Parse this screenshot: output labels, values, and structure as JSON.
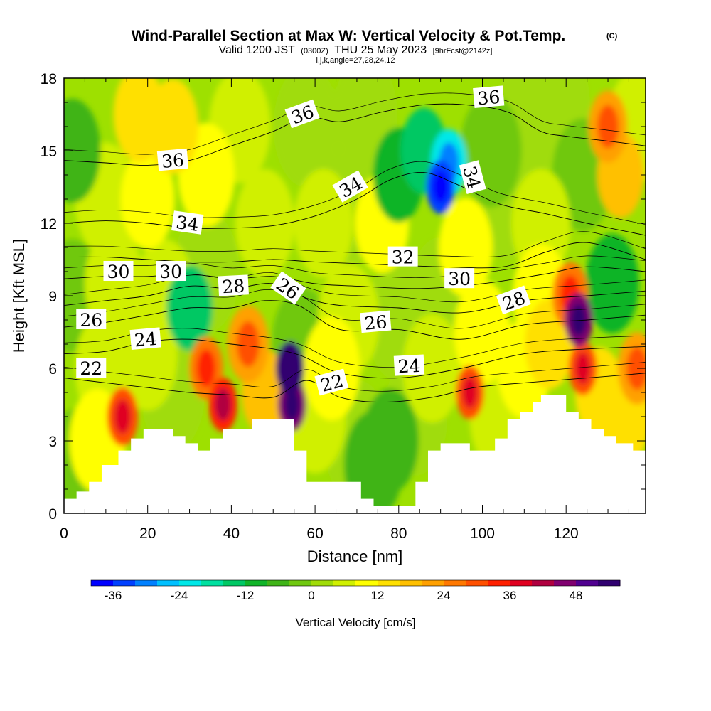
{
  "header": {
    "title": "Wind-Parallel Section at Max W: Vertical Velocity & Pot.Temp.",
    "title_mark": "(C)",
    "subtitle_valid": "Valid 1200 JST",
    "subtitle_utc": "(0300Z)",
    "subtitle_date": "THU 25 May 2023",
    "subtitle_fcst": "[9hrFcst@2142z]",
    "params": "i,j,k,angle=27,28,24,12"
  },
  "chart_data": {
    "type": "heatmap",
    "title": "Wind-Parallel Section at Max W: Vertical Velocity & Pot.Temp.",
    "xlabel": "Distance [nm]",
    "ylabel": "Height [Kft MSL]",
    "xlim": [
      0,
      139
    ],
    "ylim": [
      0,
      18
    ],
    "x_ticks": [
      "0",
      "20",
      "40",
      "60",
      "80",
      "100",
      "120"
    ],
    "y_ticks": [
      "0",
      "3",
      "6",
      "9",
      "12",
      "15",
      "18"
    ],
    "colorbar": {
      "title": "Vertical Velocity [cm/s]",
      "ticks": [
        "-36",
        "-24",
        "-12",
        "0",
        "12",
        "24",
        "36",
        "48"
      ],
      "min": -40,
      "max": 56,
      "step": 4,
      "colors": [
        "#0000ff",
        "#0040ff",
        "#0080ff",
        "#00c0ff",
        "#00e8e8",
        "#00e0a0",
        "#00c864",
        "#10b428",
        "#40b418",
        "#70c810",
        "#a0dc08",
        "#d0f000",
        "#ffff00",
        "#ffe000",
        "#ffc000",
        "#ffa000",
        "#ff7800",
        "#ff5000",
        "#ff2000",
        "#e00020",
        "#b00040",
        "#800070",
        "#500090",
        "#300070"
      ]
    },
    "velocity_cells": [
      {
        "x": 2,
        "y": 15,
        "w": -8
      },
      {
        "x": 2,
        "y": 9,
        "w": -4
      },
      {
        "x": 10,
        "y": 13,
        "w": 4
      },
      {
        "x": 18,
        "y": 16.5,
        "w": 12
      },
      {
        "x": 26,
        "y": 16,
        "w": 12
      },
      {
        "x": 20,
        "y": 13,
        "w": 10
      },
      {
        "x": 34,
        "y": 14,
        "w": 8
      },
      {
        "x": 42,
        "y": 16,
        "w": 4
      },
      {
        "x": 58,
        "y": 16,
        "w": 0
      },
      {
        "x": 62,
        "y": 12,
        "w": 6
      },
      {
        "x": 72,
        "y": 16.5,
        "w": 2
      },
      {
        "x": 80,
        "y": 14,
        "w": -12
      },
      {
        "x": 86,
        "y": 15,
        "w": -16
      },
      {
        "x": 90,
        "y": 13.5,
        "w": -36
      },
      {
        "x": 92,
        "y": 14.5,
        "w": -24
      },
      {
        "x": 102,
        "y": 15,
        "w": -4
      },
      {
        "x": 106,
        "y": 13,
        "w": 0
      },
      {
        "x": 110,
        "y": 16,
        "w": 0
      },
      {
        "x": 114,
        "y": 12,
        "w": 6
      },
      {
        "x": 118,
        "y": 17,
        "w": 2
      },
      {
        "x": 124,
        "y": 14,
        "w": -4
      },
      {
        "x": 130,
        "y": 16,
        "w": 22
      },
      {
        "x": 133,
        "y": 14,
        "w": 16
      },
      {
        "x": 137,
        "y": 16,
        "w": 4
      },
      {
        "x": 76,
        "y": 12,
        "w": 10
      },
      {
        "x": 96,
        "y": 11,
        "w": 10
      },
      {
        "x": 12,
        "y": 9.5,
        "w": 6
      },
      {
        "x": 24,
        "y": 9,
        "w": 4
      },
      {
        "x": 30,
        "y": 8.5,
        "w": -16
      },
      {
        "x": 34,
        "y": 10,
        "w": 0
      },
      {
        "x": 34,
        "y": 6,
        "w": 26
      },
      {
        "x": 38,
        "y": 4.5,
        "w": 32
      },
      {
        "x": 44,
        "y": 7,
        "w": 20
      },
      {
        "x": 48,
        "y": 5,
        "w": 16
      },
      {
        "x": 54,
        "y": 6,
        "w": 52
      },
      {
        "x": 54.5,
        "y": 4.5,
        "w": 44
      },
      {
        "x": 57,
        "y": 7,
        "w": -4
      },
      {
        "x": 60,
        "y": 4,
        "w": 4
      },
      {
        "x": 64,
        "y": 6,
        "w": 8
      },
      {
        "x": 68,
        "y": 8,
        "w": 4
      },
      {
        "x": 70,
        "y": 3,
        "w": 0
      },
      {
        "x": 74,
        "y": 2,
        "w": -6
      },
      {
        "x": 78,
        "y": 3,
        "w": -8
      },
      {
        "x": 84,
        "y": 4,
        "w": 2
      },
      {
        "x": 88,
        "y": 6,
        "w": 6
      },
      {
        "x": 97,
        "y": 5,
        "w": 30
      },
      {
        "x": 100,
        "y": 7.5,
        "w": 8
      },
      {
        "x": 104,
        "y": 4,
        "w": 6
      },
      {
        "x": 110,
        "y": 6,
        "w": 10
      },
      {
        "x": 114,
        "y": 9,
        "w": 8
      },
      {
        "x": 116,
        "y": 7,
        "w": 14
      },
      {
        "x": 121,
        "y": 9,
        "w": 24
      },
      {
        "x": 123,
        "y": 8,
        "w": 44
      },
      {
        "x": 124,
        "y": 6,
        "w": 30
      },
      {
        "x": 128,
        "y": 5,
        "w": 14
      },
      {
        "x": 131,
        "y": 9.5,
        "w": -10
      },
      {
        "x": 134,
        "y": 4,
        "w": 12
      },
      {
        "x": 137,
        "y": 6,
        "w": 22
      },
      {
        "x": 14,
        "y": 4,
        "w": 28
      },
      {
        "x": 8,
        "y": 3,
        "w": 8
      },
      {
        "x": 3,
        "y": 2,
        "w": -4
      },
      {
        "x": 26,
        "y": 5,
        "w": 2
      },
      {
        "x": 90,
        "y": 9,
        "w": 2
      },
      {
        "x": 80,
        "y": 8,
        "w": 0
      },
      {
        "x": 66,
        "y": 12.5,
        "w": 0
      },
      {
        "x": 48,
        "y": 12,
        "w": 6
      },
      {
        "x": 10,
        "y": 6,
        "w": 4
      },
      {
        "x": 20,
        "y": 6.5,
        "w": 6
      }
    ],
    "terrain": [
      [
        0,
        0.6
      ],
      [
        3,
        0.6
      ],
      [
        3,
        0.9
      ],
      [
        6,
        0.9
      ],
      [
        6,
        1.3
      ],
      [
        9,
        1.3
      ],
      [
        9,
        2.0
      ],
      [
        13,
        2.0
      ],
      [
        13,
        2.6
      ],
      [
        16,
        2.6
      ],
      [
        16,
        3.1
      ],
      [
        19,
        3.1
      ],
      [
        19,
        3.5
      ],
      [
        26,
        3.5
      ],
      [
        26,
        3.2
      ],
      [
        29,
        3.2
      ],
      [
        29,
        2.9
      ],
      [
        32,
        2.9
      ],
      [
        32,
        2.6
      ],
      [
        35,
        2.6
      ],
      [
        35,
        3.1
      ],
      [
        38,
        3.1
      ],
      [
        38,
        3.5
      ],
      [
        45,
        3.5
      ],
      [
        45,
        3.9
      ],
      [
        55,
        3.9
      ],
      [
        55,
        2.6
      ],
      [
        58,
        2.6
      ],
      [
        58,
        1.3
      ],
      [
        71,
        1.3
      ],
      [
        71,
        0.6
      ],
      [
        74,
        0.6
      ],
      [
        74,
        0.3
      ],
      [
        84,
        0.3
      ],
      [
        84,
        1.3
      ],
      [
        87,
        1.3
      ],
      [
        87,
        2.6
      ],
      [
        90,
        2.6
      ],
      [
        90,
        2.9
      ],
      [
        97,
        2.9
      ],
      [
        97,
        2.6
      ],
      [
        103,
        2.6
      ],
      [
        103,
        3.1
      ],
      [
        106,
        3.1
      ],
      [
        106,
        3.9
      ],
      [
        109,
        3.9
      ],
      [
        109,
        4.2
      ],
      [
        112,
        4.2
      ],
      [
        112,
        4.6
      ],
      [
        114,
        4.6
      ],
      [
        114,
        4.9
      ],
      [
        120,
        4.9
      ],
      [
        120,
        4.2
      ],
      [
        123,
        4.2
      ],
      [
        123,
        3.9
      ],
      [
        126,
        3.9
      ],
      [
        126,
        3.5
      ],
      [
        129,
        3.5
      ],
      [
        129,
        3.2
      ],
      [
        132,
        3.2
      ],
      [
        132,
        2.9
      ],
      [
        136,
        2.9
      ],
      [
        136,
        2.6
      ],
      [
        139,
        2.6
      ]
    ],
    "theta_contours": [
      {
        "level": 22,
        "points": [
          [
            0,
            5.6
          ],
          [
            10,
            5.4
          ],
          [
            20,
            5.2
          ],
          [
            30,
            5.0
          ],
          [
            40,
            4.9
          ],
          [
            50,
            4.8
          ],
          [
            58,
            5.5
          ],
          [
            66,
            4.8
          ],
          [
            76,
            4.6
          ],
          [
            88,
            4.8
          ],
          [
            98,
            5.2
          ],
          [
            110,
            5.4
          ],
          [
            125,
            5.6
          ],
          [
            139,
            5.8
          ]
        ]
      },
      {
        "level": 24,
        "points": [
          [
            0,
            6.6
          ],
          [
            10,
            6.7
          ],
          [
            20,
            7.1
          ],
          [
            30,
            7.2
          ],
          [
            40,
            7.0
          ],
          [
            50,
            6.8
          ],
          [
            57,
            6.5
          ],
          [
            66,
            5.8
          ],
          [
            80,
            5.6
          ],
          [
            95,
            6.0
          ],
          [
            110,
            6.6
          ],
          [
            125,
            6.8
          ],
          [
            139,
            6.9
          ]
        ]
      },
      {
        "level": 26,
        "points": [
          [
            0,
            7.7
          ],
          [
            10,
            7.9
          ],
          [
            20,
            8.2
          ],
          [
            30,
            8.5
          ],
          [
            40,
            8.5
          ],
          [
            48,
            8.8
          ],
          [
            56,
            8.6
          ],
          [
            66,
            7.6
          ],
          [
            80,
            7.6
          ],
          [
            95,
            7.2
          ],
          [
            110,
            7.8
          ],
          [
            125,
            8.0
          ],
          [
            139,
            8.2
          ]
        ]
      },
      {
        "level": 28,
        "points": [
          [
            0,
            8.6
          ],
          [
            10,
            8.8
          ],
          [
            20,
            9.0
          ],
          [
            30,
            9.4
          ],
          [
            40,
            9.3
          ],
          [
            50,
            9.5
          ],
          [
            58,
            8.9
          ],
          [
            66,
            8.6
          ],
          [
            80,
            8.5
          ],
          [
            95,
            8.3
          ],
          [
            110,
            8.8
          ],
          [
            125,
            9.0
          ],
          [
            139,
            9.2
          ]
        ]
      },
      {
        "level": 30,
        "points": [
          [
            0,
            9.7
          ],
          [
            10,
            9.8
          ],
          [
            20,
            9.8
          ],
          [
            30,
            9.9
          ],
          [
            40,
            9.7
          ],
          [
            50,
            9.8
          ],
          [
            60,
            9.5
          ],
          [
            70,
            9.4
          ],
          [
            85,
            9.3
          ],
          [
            100,
            9.5
          ],
          [
            115,
            9.9
          ],
          [
            125,
            10.2
          ],
          [
            139,
            10.0
          ]
        ]
      },
      {
        "level": 32,
        "points": [
          [
            0,
            10.6
          ],
          [
            10,
            10.6
          ],
          [
            20,
            10.5
          ],
          [
            30,
            10.4
          ],
          [
            40,
            10.4
          ],
          [
            50,
            10.5
          ],
          [
            60,
            10.4
          ],
          [
            75,
            10.3
          ],
          [
            90,
            10.2
          ],
          [
            105,
            10.2
          ],
          [
            115,
            10.8
          ],
          [
            125,
            11.2
          ],
          [
            139,
            10.5
          ]
        ]
      },
      {
        "level": 34,
        "points": [
          [
            0,
            12.0
          ],
          [
            10,
            12.1
          ],
          [
            20,
            12.0
          ],
          [
            30,
            11.8
          ],
          [
            40,
            11.8
          ],
          [
            50,
            11.9
          ],
          [
            60,
            12.3
          ],
          [
            70,
            13.0
          ],
          [
            78,
            13.8
          ],
          [
            86,
            14.1
          ],
          [
            94,
            13.6
          ],
          [
            104,
            12.8
          ],
          [
            115,
            12.4
          ],
          [
            125,
            12.0
          ],
          [
            139,
            11.5
          ]
        ]
      },
      {
        "level": 36,
        "points": [
          [
            0,
            14.6
          ],
          [
            10,
            14.5
          ],
          [
            20,
            14.4
          ],
          [
            30,
            14.6
          ],
          [
            40,
            15.2
          ],
          [
            50,
            15.8
          ],
          [
            58,
            16.4
          ],
          [
            66,
            16.2
          ],
          [
            76,
            16.6
          ],
          [
            86,
            16.9
          ],
          [
            96,
            16.9
          ],
          [
            106,
            16.6
          ],
          [
            114,
            15.8
          ],
          [
            120,
            15.6
          ],
          [
            130,
            15.4
          ],
          [
            139,
            15.2
          ]
        ]
      }
    ],
    "contour_labels": [
      {
        "text": "22",
        "x": 6.5,
        "y": 6.0,
        "angle": 0
      },
      {
        "text": "26",
        "x": 6.5,
        "y": 8.0,
        "angle": 0
      },
      {
        "text": "30",
        "x": 13,
        "y": 10.0,
        "angle": 0
      },
      {
        "text": "24",
        "x": 19.5,
        "y": 7.2,
        "angle": -5
      },
      {
        "text": "30",
        "x": 25.5,
        "y": 10.0,
        "angle": 0
      },
      {
        "text": "28",
        "x": 40.5,
        "y": 9.4,
        "angle": -3
      },
      {
        "text": "26",
        "x": 53.5,
        "y": 9.3,
        "angle": 35
      },
      {
        "text": "22",
        "x": 64,
        "y": 5.4,
        "angle": -15
      },
      {
        "text": "26",
        "x": 74.5,
        "y": 7.9,
        "angle": -5
      },
      {
        "text": "24",
        "x": 82.5,
        "y": 6.1,
        "angle": -3
      },
      {
        "text": "32",
        "x": 81,
        "y": 10.6,
        "angle": 0
      },
      {
        "text": "30",
        "x": 94.5,
        "y": 9.7,
        "angle": 0
      },
      {
        "text": "28",
        "x": 107.5,
        "y": 8.8,
        "angle": -20
      },
      {
        "text": "34",
        "x": 29.5,
        "y": 12.0,
        "angle": 8
      },
      {
        "text": "34",
        "x": 68.5,
        "y": 13.5,
        "angle": -30
      },
      {
        "text": "34",
        "x": 97.5,
        "y": 13.9,
        "angle": 75
      },
      {
        "text": "36",
        "x": 26,
        "y": 14.6,
        "angle": -5
      },
      {
        "text": "36",
        "x": 57,
        "y": 16.5,
        "angle": -20
      },
      {
        "text": "36",
        "x": 101.5,
        "y": 17.2,
        "angle": -5
      }
    ]
  }
}
